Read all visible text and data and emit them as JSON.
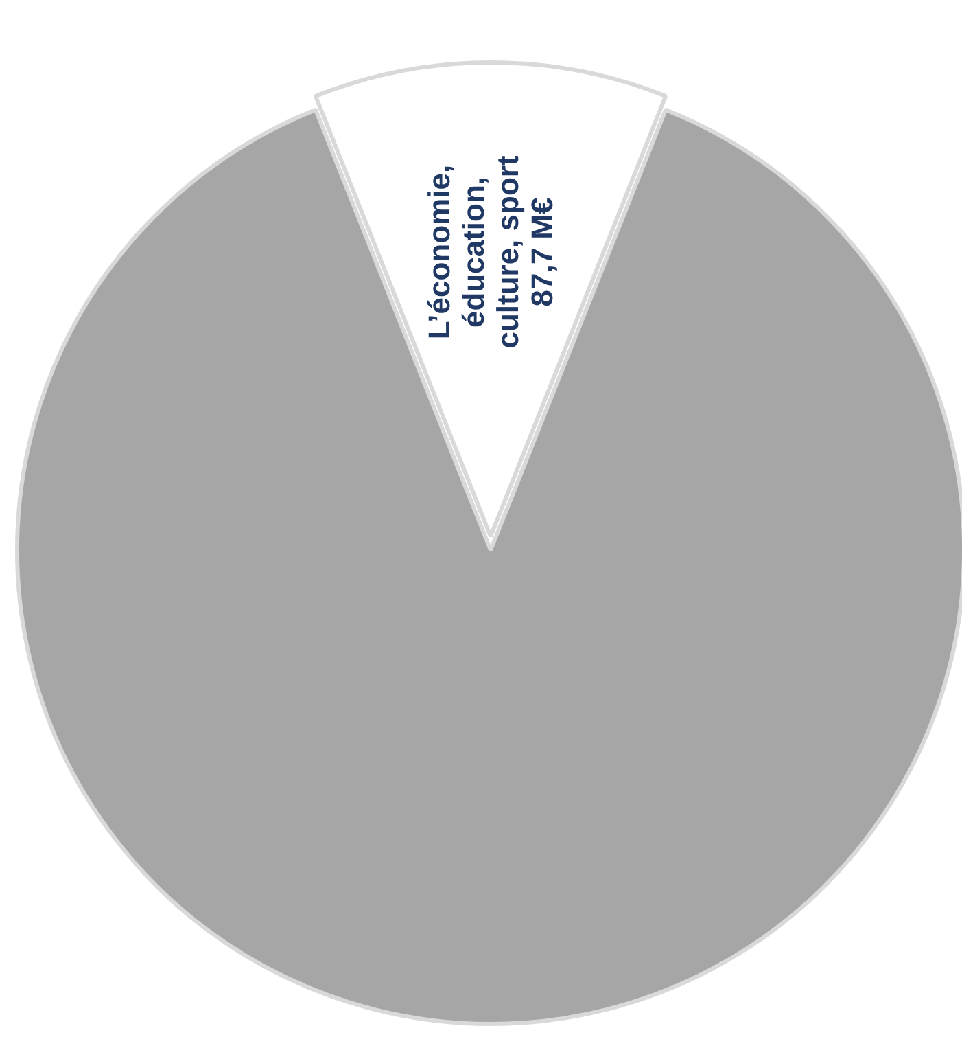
{
  "chart_data": {
    "type": "pie",
    "categories": [
      "L’économie,\néducation,\nculture, sport\n87,7 M€",
      null
    ],
    "values": [
      87.7,
      640
    ],
    "colors": [
      "#ffffff",
      "#a6a6a6"
    ]
  }
}
